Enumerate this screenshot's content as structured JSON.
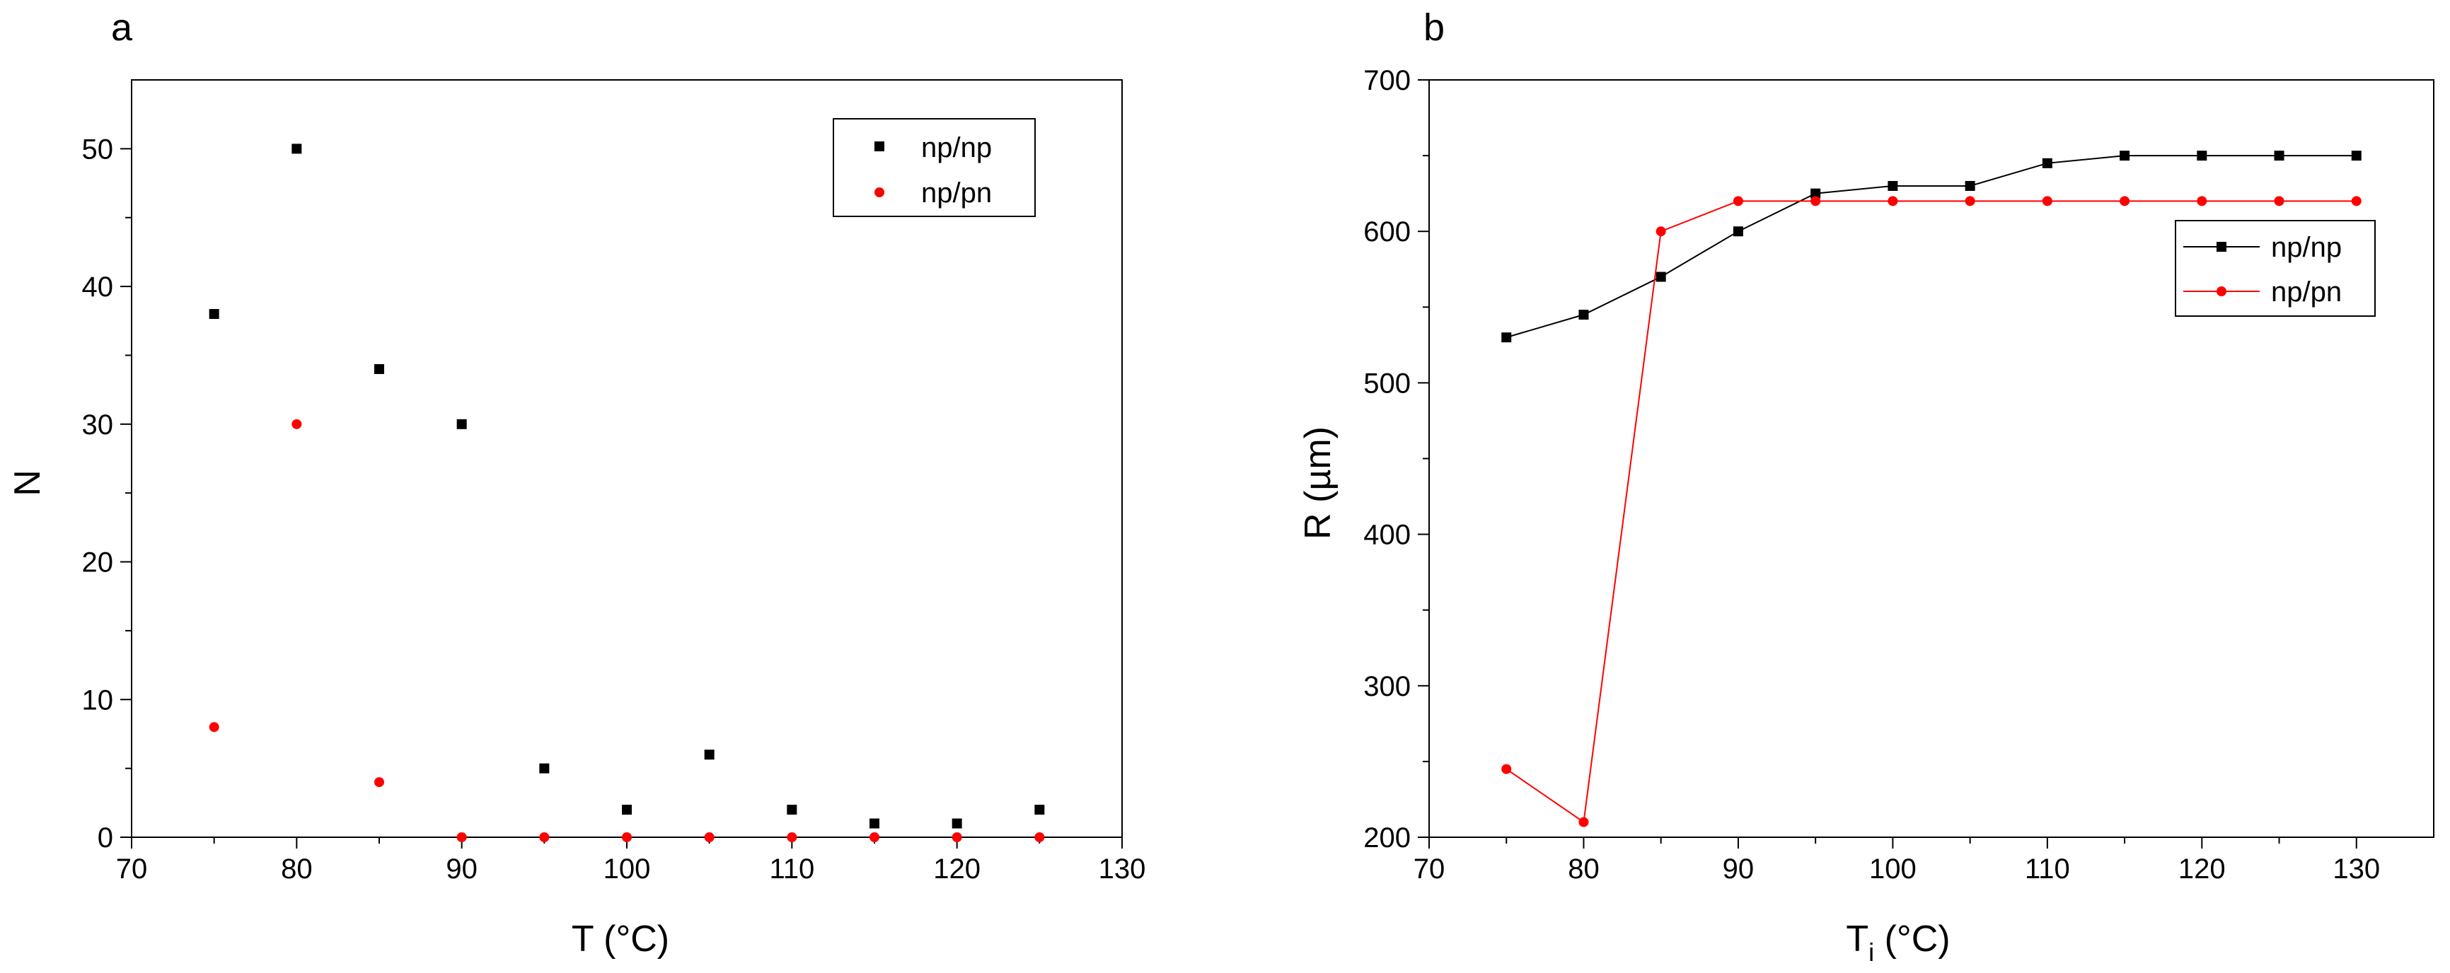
{
  "chart_data": [
    {
      "panel": "a",
      "type": "scatter",
      "xlabel": "T (°C)",
      "ylabel": "N",
      "xlim": [
        70,
        130
      ],
      "ylim": [
        0,
        55
      ],
      "xticks": [
        70,
        80,
        90,
        100,
        110,
        120,
        130
      ],
      "yticks": [
        0,
        10,
        20,
        30,
        40,
        50
      ],
      "grid": false,
      "legend_position": "top-right",
      "series": [
        {
          "name": "np/np",
          "color": "#000000",
          "marker": "square",
          "x": [
            75,
            80,
            85,
            90,
            95,
            100,
            105,
            110,
            115,
            120,
            125
          ],
          "y": [
            38,
            50,
            34,
            30,
            5,
            2,
            6,
            2,
            1,
            1,
            2
          ]
        },
        {
          "name": "np/pn",
          "color": "#ff0000",
          "marker": "circle",
          "x": [
            75,
            80,
            85,
            90,
            95,
            100,
            105,
            110,
            115,
            120,
            125
          ],
          "y": [
            8,
            30,
            4,
            0,
            0,
            0,
            0,
            0,
            0,
            0,
            0
          ]
        }
      ]
    },
    {
      "panel": "b",
      "type": "line",
      "xlabel_main": "T",
      "xlabel_sub": "i",
      "xlabel_rest": " (°C)",
      "ylabel": "R (µm)",
      "xlim": [
        70,
        135
      ],
      "ylim": [
        200,
        700
      ],
      "xticks": [
        70,
        80,
        90,
        100,
        110,
        120,
        130
      ],
      "yticks": [
        200,
        300,
        400,
        500,
        600,
        700
      ],
      "grid": false,
      "legend_position": "right",
      "series": [
        {
          "name": "np/np",
          "color": "#000000",
          "marker": "square",
          "x": [
            75,
            80,
            85,
            90,
            95,
            100,
            105,
            110,
            115,
            120,
            125,
            130
          ],
          "y": [
            530,
            545,
            570,
            600,
            625,
            630,
            630,
            645,
            650,
            650,
            650,
            650
          ]
        },
        {
          "name": "np/pn",
          "color": "#ff0000",
          "marker": "circle",
          "x": [
            75,
            80,
            85,
            90,
            95,
            100,
            105,
            110,
            115,
            120,
            125,
            130
          ],
          "y": [
            245,
            210,
            600,
            620,
            620,
            620,
            620,
            620,
            620,
            620,
            620,
            620
          ]
        }
      ]
    }
  ]
}
